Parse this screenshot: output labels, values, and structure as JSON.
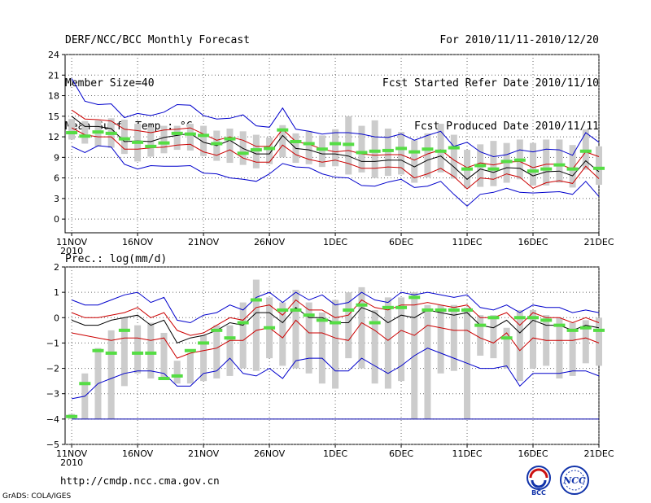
{
  "header": {
    "left": [
      "DERF/NCC/BCC Monthly Forecast",
      "Member Size=40",
      "Mean Surf. Temp.: °C"
    ],
    "right": [
      "For 2010/11/11-2010/12/20",
      "Fcst Started Refer Date 2010/11/10",
      "Fcst Produced Date 2010/11/11"
    ]
  },
  "footer": {
    "url": "http://cmdp.ncc.cma.gov.cn",
    "credit": "GrADS: COLA/IGES"
  },
  "logos": [
    {
      "icon": "bcc-logo-icon",
      "label": "BCC"
    },
    {
      "icon": "ncc-logo-icon",
      "label": "NCC"
    }
  ],
  "colors": {
    "mean": "#000000",
    "spread": "#cc0000",
    "extreme": "#0000cc",
    "member": "#55dd44",
    "box": "#cccccc",
    "floor": "#0000aa"
  },
  "chart_data": [
    {
      "type": "line",
      "title": "Mean Surf. Temp.: °C",
      "xlabel": "",
      "ylabel": "°C",
      "x_ticks": [
        {
          "day": 1,
          "label": "11NOV",
          "sub": "2010"
        },
        {
          "day": 6,
          "label": "16NOV"
        },
        {
          "day": 11,
          "label": "21NOV"
        },
        {
          "day": 16,
          "label": "26NOV"
        },
        {
          "day": 21,
          "label": "1DEC"
        },
        {
          "day": 26,
          "label": "6DEC"
        },
        {
          "day": 31,
          "label": "11DEC"
        },
        {
          "day": 36,
          "label": "16DEC"
        },
        {
          "day": 41,
          "label": "21DEC"
        }
      ],
      "xlim": [
        0.5,
        41
      ],
      "ylim": [
        -2,
        24
      ],
      "y_ticks": [
        "0",
        "3",
        "6",
        "9",
        "12",
        "15",
        "18",
        "21",
        "24"
      ],
      "grid": true,
      "series": [
        {
          "name": "max",
          "role": "extreme",
          "values": [
            20.5,
            17.2,
            16.7,
            16.8,
            14.8,
            15.4,
            15.1,
            15.6,
            16.7,
            16.6,
            15.1,
            14.6,
            14.7,
            15.2,
            13.6,
            13.4,
            16.2,
            13.1,
            12.8,
            12.4,
            12.6,
            12.6,
            12.4,
            12.0,
            11.9,
            12.4,
            11.5,
            12.2,
            12.8,
            10.6,
            11.2,
            9.8,
            9.1,
            9.4,
            10.1,
            9.8,
            10.2,
            10.1,
            9.3,
            12.6,
            11.2
          ]
        },
        {
          "name": "upper",
          "role": "spread",
          "values": [
            15.9,
            14.6,
            14.5,
            14.3,
            13.1,
            12.9,
            12.6,
            13.0,
            13.1,
            13.3,
            12.4,
            11.5,
            12.0,
            11.5,
            10.6,
            10.6,
            13.1,
            11.3,
            10.9,
            10.2,
            9.8,
            10.0,
            9.5,
            9.3,
            9.4,
            9.4,
            8.6,
            9.5,
            10.1,
            8.6,
            7.5,
            8.2,
            7.9,
            8.3,
            8.4,
            7.5,
            8.0,
            8.0,
            7.3,
            9.8,
            9.1
          ]
        },
        {
          "name": "mean",
          "role": "mean",
          "values": [
            15.0,
            13.5,
            13.5,
            13.2,
            11.3,
            11.4,
            11.3,
            11.9,
            12.2,
            12.5,
            11.2,
            10.7,
            11.5,
            10.3,
            9.5,
            9.5,
            12.2,
            10.3,
            10.1,
            9.5,
            9.5,
            9.2,
            8.4,
            8.4,
            8.6,
            8.6,
            7.6,
            8.6,
            9.2,
            7.6,
            5.8,
            7.3,
            6.8,
            7.5,
            7.4,
            6.3,
            6.9,
            7.0,
            6.3,
            8.5,
            6.9
          ]
        },
        {
          "name": "lower",
          "role": "spread",
          "values": [
            13.3,
            12.3,
            12.0,
            12.0,
            10.2,
            10.2,
            10.4,
            10.5,
            10.8,
            10.9,
            9.8,
            9.3,
            10.1,
            8.9,
            8.3,
            8.3,
            10.8,
            9.4,
            8.7,
            8.3,
            8.6,
            8.1,
            7.4,
            7.4,
            7.6,
            7.5,
            6.0,
            6.6,
            7.4,
            6.2,
            4.4,
            6.0,
            5.8,
            6.6,
            6.1,
            4.5,
            5.3,
            5.6,
            5.2,
            7.7,
            5.9
          ]
        },
        {
          "name": "min",
          "role": "extreme",
          "values": [
            10.6,
            9.7,
            10.7,
            10.5,
            8.0,
            7.3,
            7.8,
            7.7,
            7.7,
            7.8,
            6.7,
            6.6,
            6.0,
            5.8,
            5.5,
            6.6,
            8.1,
            7.6,
            7.5,
            6.6,
            6.1,
            6.0,
            4.9,
            4.8,
            5.4,
            5.8,
            4.6,
            4.8,
            5.5,
            3.6,
            1.9,
            3.6,
            3.9,
            4.5,
            3.9,
            3.8,
            3.9,
            4.0,
            3.6,
            5.5,
            3.3
          ]
        }
      ],
      "markers": [
        12.6,
        12.1,
        12.7,
        12.5,
        11.7,
        11.2,
        10.6,
        11.1,
        12.5,
        12.4,
        12.2,
        11.0,
        11.7,
        9.6,
        10.1,
        10.3,
        13.0,
        11.3,
        11.0,
        10.2,
        11.0,
        10.9,
        9.7,
        9.9,
        10.0,
        10.3,
        9.8,
        10.2,
        9.9,
        10.4,
        7.3,
        7.8,
        7.3,
        8.4,
        8.6,
        7.0,
        7.3,
        7.9,
        7.3,
        9.9,
        7.4
      ],
      "boxes": [
        [
          11.6,
          14.6
        ],
        [
          11.0,
          14.3
        ],
        [
          10.6,
          14.4
        ],
        [
          10.4,
          14.7
        ],
        [
          9.5,
          14.5
        ],
        [
          8.4,
          13.9
        ],
        [
          9.1,
          13.4
        ],
        [
          9.6,
          13.6
        ],
        [
          10.1,
          13.6
        ],
        [
          10.0,
          13.9
        ],
        [
          9.2,
          13.6
        ],
        [
          8.5,
          12.9
        ],
        [
          8.2,
          13.2
        ],
        [
          7.9,
          12.8
        ],
        [
          7.4,
          12.3
        ],
        [
          8.0,
          11.9
        ],
        [
          9.0,
          13.7
        ],
        [
          8.2,
          12.5
        ],
        [
          8.0,
          12.8
        ],
        [
          7.6,
          12.2
        ],
        [
          7.7,
          13.1
        ],
        [
          6.5,
          15.0
        ],
        [
          6.8,
          13.6
        ],
        [
          6.0,
          14.4
        ],
        [
          6.3,
          13.2
        ],
        [
          6.5,
          12.7
        ],
        [
          5.3,
          11.5
        ],
        [
          6.1,
          12.5
        ],
        [
          6.8,
          13.9
        ],
        [
          5.9,
          12.3
        ],
        [
          4.5,
          10.1
        ],
        [
          4.7,
          10.9
        ],
        [
          4.8,
          11.4
        ],
        [
          5.3,
          11.1
        ],
        [
          5.8,
          11.6
        ],
        [
          4.9,
          11.1
        ],
        [
          4.9,
          11.6
        ],
        [
          5.3,
          11.6
        ],
        [
          4.6,
          10.8
        ],
        [
          7.2,
          13.1
        ],
        [
          5.0,
          10.6
        ]
      ]
    },
    {
      "type": "line",
      "title": "Prec.: log(mm/d)",
      "xlabel": "",
      "ylabel": "log(mm/d)",
      "x_ticks": [
        {
          "day": 1,
          "label": "11NOV",
          "sub": "2010"
        },
        {
          "day": 6,
          "label": "16NOV"
        },
        {
          "day": 11,
          "label": "21NOV"
        },
        {
          "day": 16,
          "label": "26NOV"
        },
        {
          "day": 21,
          "label": "1DEC"
        },
        {
          "day": 26,
          "label": "6DEC"
        },
        {
          "day": 31,
          "label": "11DEC"
        },
        {
          "day": 36,
          "label": "16DEC"
        },
        {
          "day": 41,
          "label": "21DEC"
        }
      ],
      "xlim": [
        0.5,
        41
      ],
      "ylim": [
        -5,
        2
      ],
      "y_ticks": [
        "−5",
        "−4",
        "−3",
        "−2",
        "−1",
        "0",
        "1",
        "2"
      ],
      "grid": true,
      "floor": -4,
      "series": [
        {
          "name": "max",
          "role": "extreme",
          "values": [
            0.7,
            0.5,
            0.5,
            0.7,
            0.9,
            1.0,
            0.6,
            0.8,
            -0.1,
            -0.2,
            0.1,
            0.2,
            0.5,
            0.3,
            0.8,
            1.0,
            0.6,
            1.0,
            0.7,
            0.9,
            0.5,
            0.6,
            1.0,
            0.7,
            0.6,
            1.0,
            0.9,
            1.0,
            0.9,
            0.8,
            0.9,
            0.4,
            0.3,
            0.5,
            0.2,
            0.5,
            0.4,
            0.4,
            0.2,
            0.3,
            0.2
          ]
        },
        {
          "name": "upper",
          "role": "spread",
          "values": [
            0.2,
            0.0,
            0.0,
            0.1,
            0.2,
            0.4,
            0.0,
            0.2,
            -0.5,
            -0.7,
            -0.6,
            -0.3,
            0.0,
            -0.1,
            0.4,
            0.5,
            0.1,
            0.7,
            0.3,
            0.3,
            0.0,
            0.1,
            0.7,
            0.4,
            0.3,
            0.5,
            0.5,
            0.6,
            0.5,
            0.4,
            0.5,
            0.0,
            0.0,
            0.2,
            -0.3,
            0.2,
            0.0,
            0.0,
            -0.2,
            0.0,
            -0.2
          ]
        },
        {
          "name": "mean",
          "role": "mean",
          "values": [
            -0.1,
            -0.3,
            -0.3,
            -0.1,
            0.0,
            0.1,
            -0.3,
            -0.1,
            -1.0,
            -0.8,
            -0.7,
            -0.5,
            -0.2,
            -0.3,
            0.2,
            0.2,
            -0.2,
            0.4,
            0.0,
            0.0,
            -0.2,
            -0.2,
            0.4,
            0.2,
            -0.2,
            0.1,
            0.0,
            0.3,
            0.2,
            0.1,
            0.2,
            -0.3,
            -0.4,
            -0.1,
            -0.6,
            -0.1,
            -0.3,
            -0.3,
            -0.5,
            -0.3,
            -0.4
          ]
        },
        {
          "name": "lower",
          "role": "spread",
          "values": [
            -0.6,
            -0.7,
            -0.8,
            -0.9,
            -0.8,
            -0.8,
            -0.9,
            -0.8,
            -1.6,
            -1.4,
            -1.3,
            -1.2,
            -0.9,
            -0.9,
            -0.5,
            -0.4,
            -0.8,
            -0.1,
            -0.6,
            -0.6,
            -0.8,
            -0.9,
            -0.2,
            -0.5,
            -0.9,
            -0.5,
            -0.7,
            -0.3,
            -0.4,
            -0.5,
            -0.5,
            -0.8,
            -1.0,
            -0.6,
            -1.3,
            -0.8,
            -0.9,
            -0.9,
            -0.9,
            -0.8,
            -1.0
          ]
        },
        {
          "name": "min",
          "role": "extreme",
          "values": [
            -3.2,
            -3.1,
            -2.6,
            -2.4,
            -2.2,
            -2.1,
            -2.1,
            -2.2,
            -2.7,
            -2.7,
            -2.2,
            -2.1,
            -1.6,
            -2.2,
            -2.3,
            -2.0,
            -2.4,
            -1.7,
            -1.6,
            -1.6,
            -2.1,
            -2.1,
            -1.6,
            -1.9,
            -2.2,
            -1.9,
            -1.5,
            -1.2,
            -1.4,
            -1.6,
            -1.8,
            -2.0,
            -2.0,
            -1.9,
            -2.7,
            -2.2,
            -2.2,
            -2.2,
            -2.1,
            -2.1,
            -2.3
          ]
        },
        {
          "name": "floor",
          "role": "floor",
          "values": [
            -4,
            -4,
            -4,
            -4,
            -4,
            -4,
            -4,
            -4,
            -4,
            -4,
            -4,
            -4,
            -4,
            -4,
            -4,
            -4,
            -4,
            -4,
            -4,
            -4,
            -4,
            -4,
            -4,
            -4,
            -4,
            -4,
            -4,
            -4,
            -4,
            -4,
            -4,
            -4,
            -4,
            -4,
            -4,
            -4,
            -4,
            -4,
            -4,
            -4,
            -4
          ]
        }
      ],
      "markers": [
        -3.9,
        -2.6,
        -1.3,
        -1.4,
        -0.5,
        -1.4,
        -1.4,
        -2.4,
        -2.3,
        -1.3,
        -1.0,
        -0.5,
        -0.8,
        -0.2,
        0.7,
        -0.4,
        0.3,
        0.3,
        0.1,
        -0.1,
        -0.2,
        0.3,
        0.5,
        -0.2,
        0.4,
        0.4,
        0.8,
        0.3,
        0.3,
        0.3,
        0.3,
        -0.3,
        0.0,
        -0.8,
        0.0,
        0.0,
        -0.1,
        -0.3,
        -0.5,
        -0.4,
        -0.5
      ],
      "boxes": [
        [
          -4.0,
          -3.8
        ],
        [
          -4.0,
          -2.2
        ],
        [
          -4.0,
          -1.2
        ],
        [
          -4.0,
          -0.5
        ],
        [
          -2.7,
          0.0
        ],
        [
          -2.2,
          -0.3
        ],
        [
          -2.4,
          -0.2
        ],
        [
          -2.4,
          -0.6
        ],
        [
          -2.6,
          -1.7
        ],
        [
          -2.6,
          -1.4
        ],
        [
          -2.5,
          -0.7
        ],
        [
          -2.4,
          -0.3
        ],
        [
          -2.3,
          -0.3
        ],
        [
          -2.0,
          0.6
        ],
        [
          -2.1,
          1.5
        ],
        [
          -1.6,
          0.8
        ],
        [
          -1.9,
          0.6
        ],
        [
          -2.0,
          1.1
        ],
        [
          -2.2,
          0.6
        ],
        [
          -2.6,
          0.2
        ],
        [
          -2.8,
          0.7
        ],
        [
          -1.6,
          1.0
        ],
        [
          -2.0,
          1.2
        ],
        [
          -2.6,
          0.3
        ],
        [
          -2.8,
          0.8
        ],
        [
          -2.5,
          0.8
        ],
        [
          -4.0,
          1.0
        ],
        [
          -4.0,
          0.5
        ],
        [
          -2.2,
          0.5
        ],
        [
          -2.1,
          0.5
        ],
        [
          -4.0,
          0.4
        ],
        [
          -1.5,
          0.1
        ],
        [
          -1.6,
          0.1
        ],
        [
          -2.0,
          -0.4
        ],
        [
          -2.5,
          0.3
        ],
        [
          -2.0,
          0.3
        ],
        [
          -1.9,
          0.1
        ],
        [
          -2.4,
          0.0
        ],
        [
          -2.3,
          -0.2
        ],
        [
          -1.8,
          -0.1
        ],
        [
          -1.9,
          0.0
        ]
      ]
    }
  ]
}
